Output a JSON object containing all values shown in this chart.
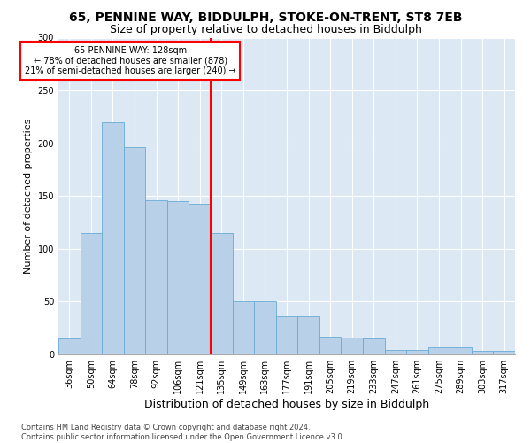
{
  "title1": "65, PENNINE WAY, BIDDULPH, STOKE-ON-TRENT, ST8 7EB",
  "title2": "Size of property relative to detached houses in Biddulph",
  "xlabel": "Distribution of detached houses by size in Biddulph",
  "ylabel": "Number of detached properties",
  "footnote": "Contains HM Land Registry data © Crown copyright and database right 2024.\nContains public sector information licensed under the Open Government Licence v3.0.",
  "categories": [
    "36sqm",
    "50sqm",
    "64sqm",
    "78sqm",
    "92sqm",
    "106sqm",
    "121sqm",
    "135sqm",
    "149sqm",
    "163sqm",
    "177sqm",
    "191sqm",
    "205sqm",
    "219sqm",
    "233sqm",
    "247sqm",
    "261sqm",
    "275sqm",
    "289sqm",
    "303sqm",
    "317sqm"
  ],
  "values": [
    15,
    115,
    220,
    196,
    146,
    145,
    143,
    115,
    50,
    50,
    36,
    36,
    17,
    16,
    15,
    4,
    4,
    7,
    7,
    3,
    3
  ],
  "bar_color": "#b8d0e8",
  "bar_edge_color": "#6aaad4",
  "vline_bar_index": 7,
  "vline_color": "red",
  "annotation_text": "65 PENNINE WAY: 128sqm\n← 78% of detached houses are smaller (878)\n21% of semi-detached houses are larger (240) →",
  "annotation_box_color": "white",
  "annotation_box_edge": "red",
  "ylim": [
    0,
    300
  ],
  "yticks": [
    0,
    50,
    100,
    150,
    200,
    250,
    300
  ],
  "bg_color": "#ffffff",
  "plot_bg_color": "#dce9f5",
  "title1_fontsize": 10,
  "title2_fontsize": 9,
  "xlabel_fontsize": 9,
  "ylabel_fontsize": 8,
  "tick_fontsize": 7,
  "footnote_fontsize": 6
}
